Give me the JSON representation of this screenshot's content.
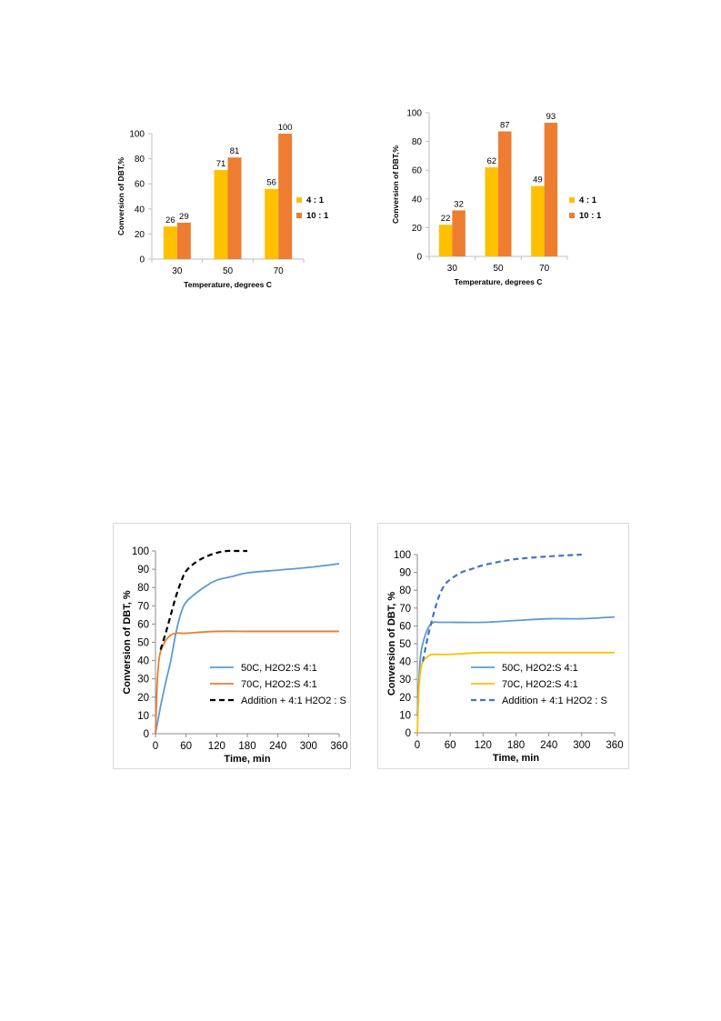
{
  "chart_data": [
    {
      "type": "bar",
      "categories": [
        "30",
        "50",
        "70"
      ],
      "series": [
        {
          "name": "4 : 1",
          "values": [
            26,
            71,
            56
          ],
          "color": "#FFC000"
        },
        {
          "name": "10 : 1",
          "values": [
            29,
            81,
            100
          ],
          "color": "#ED7D31"
        }
      ],
      "xlabel": "Temperature, degrees C",
      "ylabel": "Conversion of DBT,%",
      "ylim": [
        0,
        100
      ],
      "yticks": [
        0,
        20,
        40,
        60,
        80,
        100
      ],
      "legend": "right",
      "grid": false
    },
    {
      "type": "bar",
      "categories": [
        "30",
        "50",
        "70"
      ],
      "series": [
        {
          "name": "4 : 1",
          "values": [
            22,
            62,
            49
          ],
          "color": "#FFC000"
        },
        {
          "name": "10 : 1",
          "values": [
            32,
            87,
            93
          ],
          "color": "#ED7D31"
        }
      ],
      "xlabel": "Temperature, degrees C",
      "ylabel": "Conversion of DBT,%",
      "ylim": [
        0,
        100
      ],
      "yticks": [
        0,
        20,
        40,
        60,
        80,
        100
      ],
      "legend": "right",
      "grid": false
    },
    {
      "type": "line",
      "xlabel": "Time, min",
      "ylabel": "Conversion of DBT, %",
      "xlim": [
        0,
        360
      ],
      "ylim": [
        0,
        100
      ],
      "xticks": [
        0,
        60,
        120,
        180,
        240,
        300,
        360
      ],
      "yticks": [
        0,
        10,
        20,
        30,
        40,
        50,
        60,
        70,
        80,
        90,
        100
      ],
      "legend": "center-right",
      "grid": false,
      "series": [
        {
          "name": "50C, H2O2:S 4:1",
          "color": "#5B9BD5",
          "dash": false,
          "x": [
            0,
            10,
            20,
            30,
            40,
            50,
            60,
            80,
            100,
            120,
            150,
            180,
            240,
            300,
            360
          ],
          "y": [
            0,
            15,
            28,
            40,
            55,
            66,
            72,
            77,
            81,
            84,
            86,
            88,
            89.5,
            91,
            93
          ]
        },
        {
          "name": "70C, H2O2:S 4:1",
          "color": "#ED7D31",
          "dash": false,
          "x": [
            0,
            3,
            6,
            10,
            20,
            30,
            40,
            50,
            60,
            120,
            180,
            240,
            300,
            360
          ],
          "y": [
            0,
            25,
            38,
            45,
            51,
            54,
            55,
            55,
            55,
            56,
            56,
            56,
            56,
            56
          ]
        },
        {
          "name": "Addition + 4:1 H2O2 : S",
          "color": "#000000",
          "dash": true,
          "x": [
            10,
            20,
            30,
            40,
            50,
            60,
            80,
            100,
            120,
            140,
            150,
            180
          ],
          "y": [
            46,
            55,
            65,
            75,
            83,
            89,
            94,
            97,
            99,
            100,
            100,
            100
          ]
        }
      ]
    },
    {
      "type": "line",
      "xlabel": "Time, min",
      "ylabel": "Conversion of DBT, %",
      "xlim": [
        0,
        360
      ],
      "ylim": [
        0,
        100
      ],
      "xticks": [
        0,
        60,
        120,
        180,
        240,
        300,
        360
      ],
      "yticks": [
        0,
        10,
        20,
        30,
        40,
        50,
        60,
        70,
        80,
        90,
        100
      ],
      "legend": "center-right",
      "grid": false,
      "series": [
        {
          "name": "50C, H2O2:S 4:1",
          "color": "#5B9BD5",
          "dash": false,
          "x": [
            0,
            5,
            10,
            20,
            30,
            40,
            60,
            120,
            180,
            240,
            300,
            360
          ],
          "y": [
            10,
            40,
            50,
            59,
            62,
            62,
            62,
            62,
            63,
            64,
            64,
            65
          ]
        },
        {
          "name": "70C, H2O2:S 4:1",
          "color": "#FFC000",
          "dash": false,
          "x": [
            0,
            3,
            6,
            10,
            20,
            30,
            60,
            120,
            180,
            240,
            300,
            360
          ],
          "y": [
            0,
            25,
            35,
            40,
            43,
            44,
            44,
            45,
            45,
            45,
            45,
            45
          ]
        },
        {
          "name": "Addition + 4:1 H2O2 : S",
          "color": "#4472C4",
          "dash": true,
          "x": [
            10,
            20,
            30,
            40,
            50,
            60,
            80,
            100,
            120,
            150,
            180,
            240,
            300
          ],
          "y": [
            40,
            55,
            67,
            77,
            83,
            86,
            90,
            92,
            94,
            96,
            97.5,
            99,
            100
          ]
        }
      ]
    }
  ]
}
